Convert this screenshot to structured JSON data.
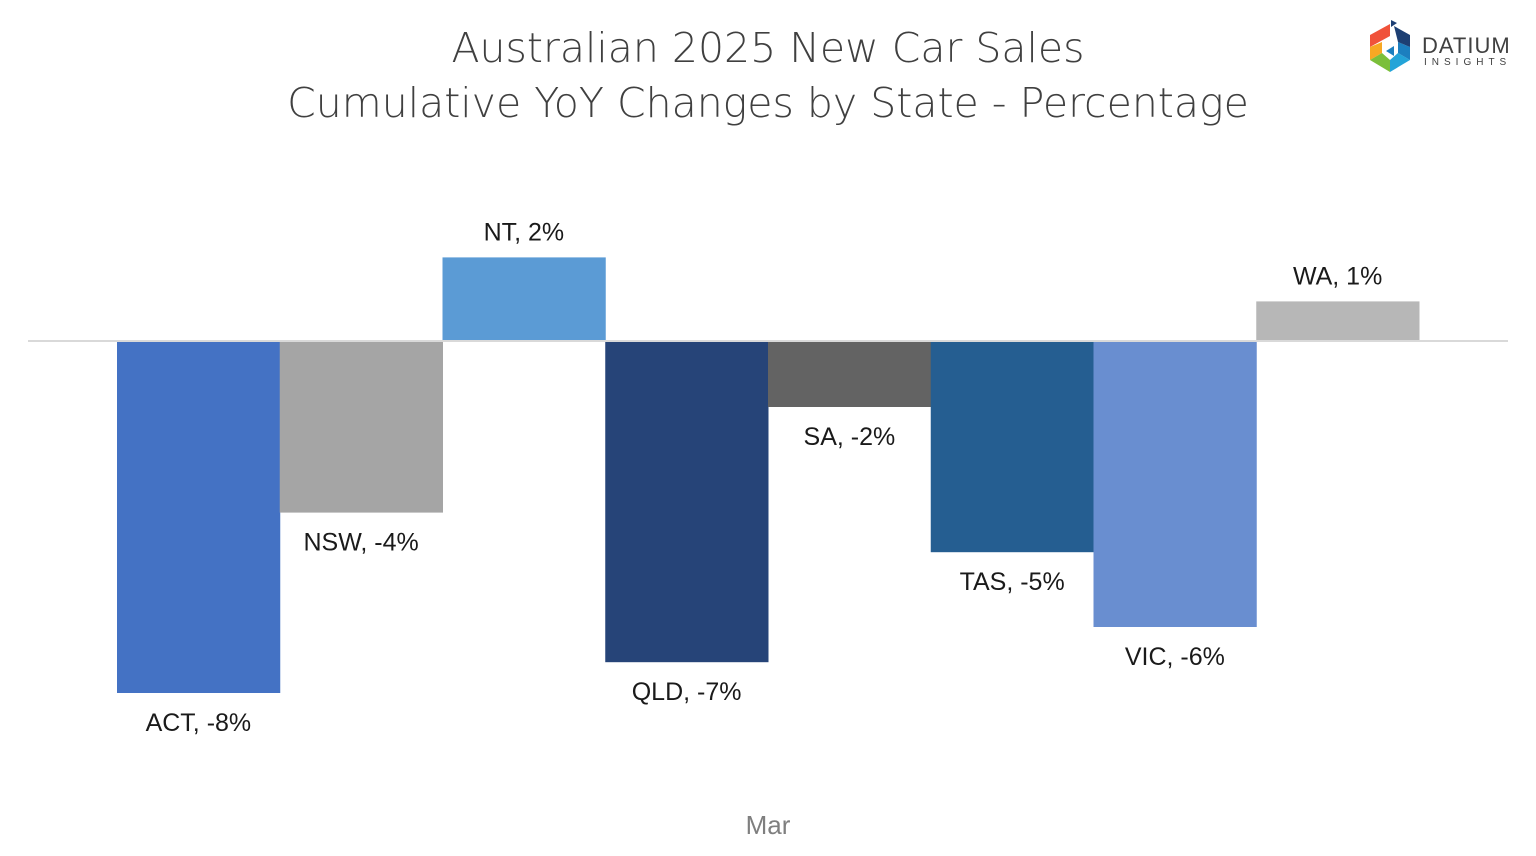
{
  "chart_data": {
    "type": "bar",
    "title": "Australian 2025 New Car Sales",
    "subtitle": "Cumulative YoY Changes by State - Percentage",
    "xlabel": "Mar",
    "ylabel": "",
    "grid": false,
    "legend": "none",
    "ylim": [
      -9,
      5
    ],
    "categories": [
      "ACT",
      "NSW",
      "NT",
      "QLD",
      "SA",
      "TAS",
      "VIC",
      "WA"
    ],
    "values": [
      -8.0,
      -3.9,
      1.9,
      -7.3,
      -1.5,
      -4.8,
      -6.5,
      0.9
    ],
    "data_labels": [
      "ACT, -8%",
      "NSW, -4%",
      "NT, 2%",
      "QLD, -7%",
      "SA, -2%",
      "TAS, -5%",
      "VIC, -6%",
      "WA, 1%"
    ],
    "colors": [
      "#4472c4",
      "#a5a5a5",
      "#5b9bd5",
      "#264478",
      "#636363",
      "#255e91",
      "#698ed0",
      "#b7b7b7"
    ]
  },
  "logo": {
    "name": "DATIUM",
    "tagline": "INSIGHTS"
  }
}
